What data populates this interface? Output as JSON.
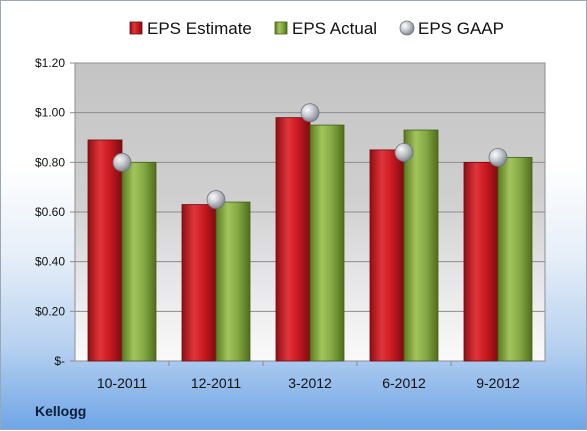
{
  "chart_data": {
    "type": "bar",
    "categories": [
      "10-2011",
      "12-2011",
      "3-2012",
      "6-2012",
      "9-2012"
    ],
    "series": [
      {
        "name": "EPS Estimate",
        "values": [
          0.89,
          0.63,
          0.98,
          0.85,
          0.8
        ],
        "color": "#c0181f",
        "mark": "bar"
      },
      {
        "name": "EPS Actual",
        "values": [
          0.8,
          0.64,
          0.95,
          0.93,
          0.82
        ],
        "color": "#7da13a",
        "mark": "bar"
      },
      {
        "name": "EPS GAAP",
        "values": [
          0.8,
          0.65,
          1.0,
          0.84,
          0.82
        ],
        "color": "#b8bcc4",
        "mark": "circle"
      }
    ],
    "ylim": [
      0,
      1.2
    ],
    "yticks": [
      {
        "value": 0,
        "label": "$-"
      },
      {
        "value": 0.2,
        "label": "$0.20"
      },
      {
        "value": 0.4,
        "label": "$0.40"
      },
      {
        "value": 0.6,
        "label": "$0.60"
      },
      {
        "value": 0.8,
        "label": "$0.80"
      },
      {
        "value": 1.0,
        "label": "$1.00"
      },
      {
        "value": 1.2,
        "label": "$1.20"
      }
    ],
    "grid": true,
    "legend_position": "top"
  },
  "company": "Kellogg"
}
